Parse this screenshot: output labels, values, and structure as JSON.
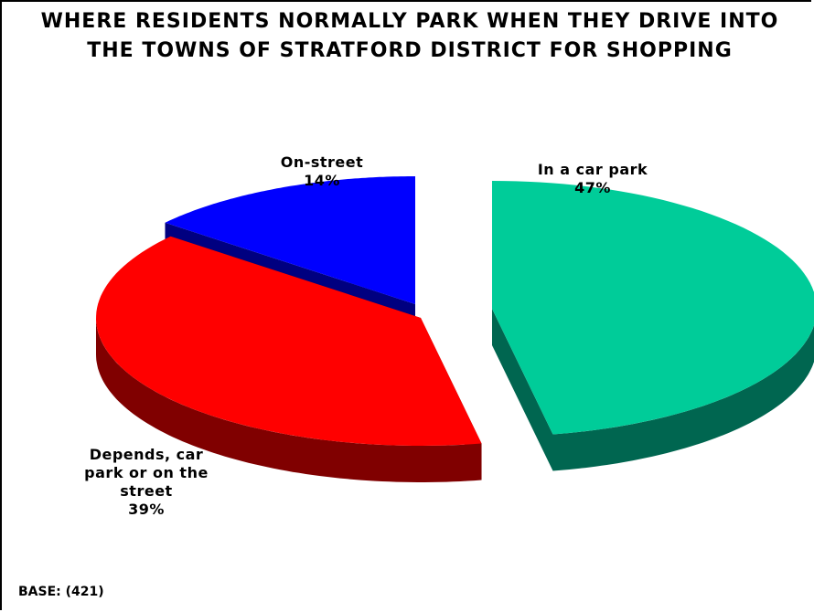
{
  "title_line1": "WHERE RESIDENTS NORMALLY PARK WHEN THEY DRIVE INTO",
  "title_line2": "THE TOWNS OF STRATFORD DISTRICT FOR SHOPPING",
  "base": "BASE: (421)",
  "chart_data": {
    "type": "pie",
    "title": "WHERE RESIDENTS NORMALLY PARK WHEN THEY DRIVE INTO THE TOWNS OF STRATFORD DISTRICT FOR SHOPPING",
    "slices": [
      {
        "label": "In a car park",
        "value": 47,
        "display": "47%",
        "color": "#00cc99",
        "side_color": "#006650"
      },
      {
        "label": "Depends, car park or on the street",
        "value": 39,
        "display": "39%",
        "color": "#ff0000",
        "side_color": "#800000"
      },
      {
        "label": "On-street",
        "value": 14,
        "display": "14%",
        "color": "#0000ff",
        "side_color": "#000080"
      }
    ],
    "exploded": true,
    "three_d": true
  }
}
